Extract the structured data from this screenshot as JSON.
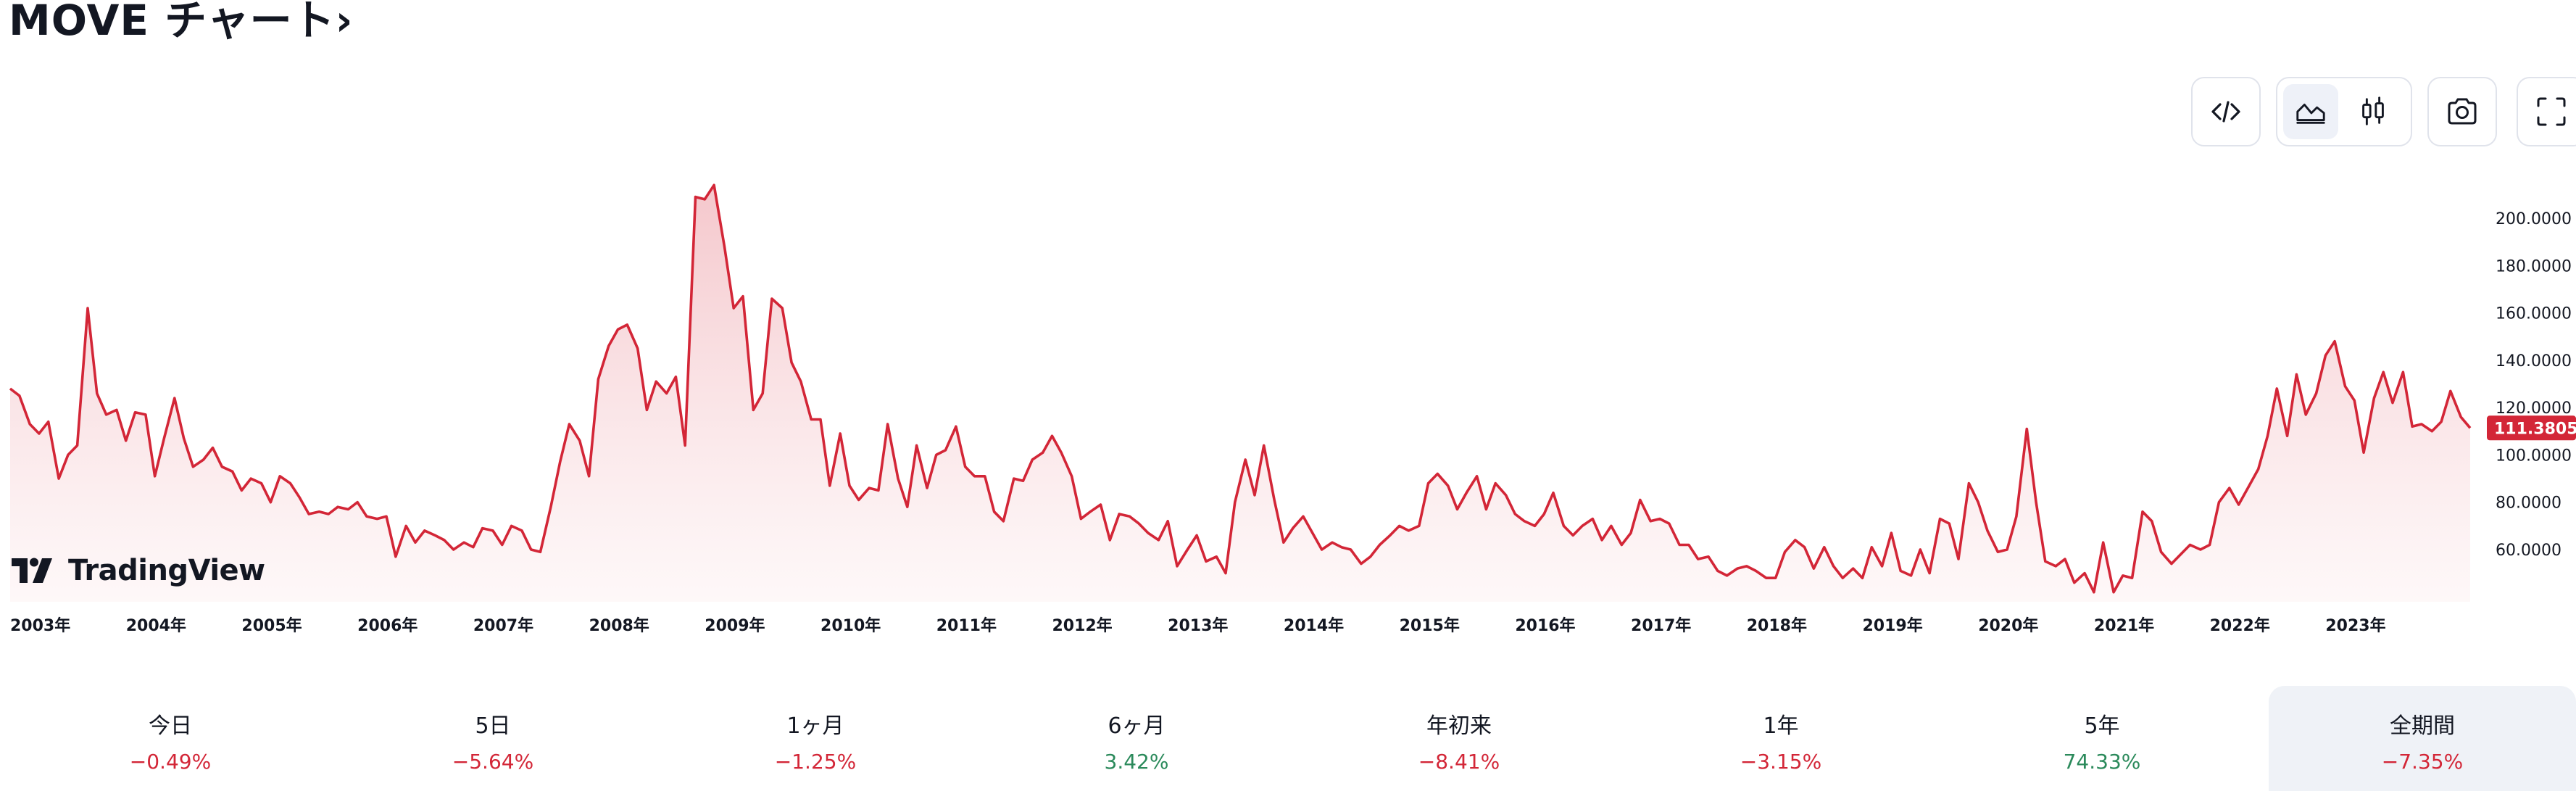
{
  "header": {
    "title": "MOVE チャート›"
  },
  "toolbar": {
    "buttons": [
      {
        "name": "embed-code",
        "icon": "code-icon"
      },
      {
        "name": "line-chart",
        "icon": "area-chart-icon",
        "active": true
      },
      {
        "name": "candles",
        "icon": "candlestick-icon"
      },
      {
        "name": "snapshot",
        "icon": "camera-icon"
      },
      {
        "name": "fullscreen",
        "icon": "fullscreen-icon"
      }
    ]
  },
  "watermark": {
    "text": "TradingView"
  },
  "colors": {
    "line": "#d32637",
    "fill_top": "#f4c4c9",
    "fill_bottom": "#fdf3f4",
    "negative": "#d32637",
    "positive": "#2b8a5b"
  },
  "chart_data": {
    "type": "area",
    "title": "MOVE",
    "xlabel": "",
    "ylabel": "",
    "x_start_year": 2003,
    "x_tick_labels": [
      "2003年",
      "2004年",
      "2005年",
      "2006年",
      "2007年",
      "2008年",
      "2009年",
      "2010年",
      "2011年",
      "2012年",
      "2013年",
      "2014年",
      "2015年",
      "2016年",
      "2017年",
      "2018年",
      "2019年",
      "2020年",
      "2021年",
      "2022年",
      "2023年"
    ],
    "y_tick_labels": [
      "60.0000",
      "80.0000",
      "100.0000",
      "120.0000",
      "140.0000",
      "160.0000",
      "180.0000",
      "200.0000"
    ],
    "y_ticks": [
      60,
      80,
      100,
      120,
      140,
      160,
      180,
      200
    ],
    "ylim": [
      35,
      216
    ],
    "last_value": 111.3805,
    "last_value_label": "111.3805",
    "grid": false,
    "series": [
      {
        "values": [
          [
            2003.0,
            128
          ],
          [
            2003.08,
            125
          ],
          [
            2003.17,
            113
          ],
          [
            2003.25,
            109
          ],
          [
            2003.33,
            114
          ],
          [
            2003.42,
            90
          ],
          [
            2003.5,
            100
          ],
          [
            2003.58,
            104
          ],
          [
            2003.67,
            162
          ],
          [
            2003.75,
            126
          ],
          [
            2003.83,
            117
          ],
          [
            2003.92,
            119
          ],
          [
            2004.0,
            106
          ],
          [
            2004.08,
            118
          ],
          [
            2004.17,
            117
          ],
          [
            2004.25,
            91
          ],
          [
            2004.33,
            107
          ],
          [
            2004.42,
            124
          ],
          [
            2004.5,
            107
          ],
          [
            2004.58,
            95
          ],
          [
            2004.67,
            98
          ],
          [
            2004.75,
            103
          ],
          [
            2004.83,
            95
          ],
          [
            2004.92,
            93
          ],
          [
            2005.0,
            85
          ],
          [
            2005.08,
            90
          ],
          [
            2005.17,
            88
          ],
          [
            2005.25,
            80
          ],
          [
            2005.33,
            91
          ],
          [
            2005.42,
            88
          ],
          [
            2005.5,
            82
          ],
          [
            2005.58,
            75
          ],
          [
            2005.67,
            76
          ],
          [
            2005.75,
            75
          ],
          [
            2005.83,
            78
          ],
          [
            2005.92,
            77
          ],
          [
            2006.0,
            80
          ],
          [
            2006.08,
            74
          ],
          [
            2006.17,
            73
          ],
          [
            2006.25,
            74
          ],
          [
            2006.33,
            57
          ],
          [
            2006.42,
            70
          ],
          [
            2006.5,
            63
          ],
          [
            2006.58,
            68
          ],
          [
            2006.67,
            66
          ],
          [
            2006.75,
            64
          ],
          [
            2006.83,
            60
          ],
          [
            2006.92,
            63
          ],
          [
            2007.0,
            61
          ],
          [
            2007.08,
            69
          ],
          [
            2007.17,
            68
          ],
          [
            2007.25,
            62
          ],
          [
            2007.33,
            70
          ],
          [
            2007.42,
            68
          ],
          [
            2007.5,
            60
          ],
          [
            2007.58,
            59
          ],
          [
            2007.67,
            78
          ],
          [
            2007.75,
            97
          ],
          [
            2007.83,
            113
          ],
          [
            2007.92,
            106
          ],
          [
            2008.0,
            91
          ],
          [
            2008.08,
            132
          ],
          [
            2008.17,
            146
          ],
          [
            2008.25,
            153
          ],
          [
            2008.33,
            155
          ],
          [
            2008.42,
            145
          ],
          [
            2008.5,
            119
          ],
          [
            2008.58,
            131
          ],
          [
            2008.67,
            126
          ],
          [
            2008.75,
            133
          ],
          [
            2008.83,
            104
          ],
          [
            2008.92,
            209
          ],
          [
            2009.0,
            208
          ],
          [
            2009.08,
            214
          ],
          [
            2009.17,
            188
          ],
          [
            2009.25,
            162
          ],
          [
            2009.33,
            167
          ],
          [
            2009.42,
            119
          ],
          [
            2009.5,
            126
          ],
          [
            2009.58,
            166
          ],
          [
            2009.67,
            162
          ],
          [
            2009.75,
            139
          ],
          [
            2009.83,
            131
          ],
          [
            2009.92,
            115
          ],
          [
            2010.0,
            115
          ],
          [
            2010.08,
            87
          ],
          [
            2010.17,
            109
          ],
          [
            2010.25,
            87
          ],
          [
            2010.33,
            81
          ],
          [
            2010.42,
            86
          ],
          [
            2010.5,
            85
          ],
          [
            2010.58,
            113
          ],
          [
            2010.67,
            90
          ],
          [
            2010.75,
            78
          ],
          [
            2010.83,
            104
          ],
          [
            2010.92,
            86
          ],
          [
            2011.0,
            100
          ],
          [
            2011.08,
            102
          ],
          [
            2011.17,
            112
          ],
          [
            2011.25,
            95
          ],
          [
            2011.33,
            91
          ],
          [
            2011.42,
            91
          ],
          [
            2011.5,
            76
          ],
          [
            2011.58,
            72
          ],
          [
            2011.67,
            90
          ],
          [
            2011.75,
            89
          ],
          [
            2011.83,
            98
          ],
          [
            2011.92,
            101
          ],
          [
            2012.0,
            108
          ],
          [
            2012.08,
            101
          ],
          [
            2012.17,
            91
          ],
          [
            2012.25,
            73
          ],
          [
            2012.33,
            76
          ],
          [
            2012.42,
            79
          ],
          [
            2012.5,
            64
          ],
          [
            2012.58,
            75
          ],
          [
            2012.67,
            74
          ],
          [
            2012.75,
            71
          ],
          [
            2012.83,
            67
          ],
          [
            2012.92,
            64
          ],
          [
            2013.0,
            72
          ],
          [
            2013.08,
            53
          ],
          [
            2013.17,
            60
          ],
          [
            2013.25,
            66
          ],
          [
            2013.33,
            55
          ],
          [
            2013.42,
            57
          ],
          [
            2013.5,
            50
          ],
          [
            2013.58,
            80
          ],
          [
            2013.67,
            98
          ],
          [
            2013.75,
            83
          ],
          [
            2013.83,
            104
          ],
          [
            2013.92,
            81
          ],
          [
            2014.0,
            63
          ],
          [
            2014.08,
            69
          ],
          [
            2014.17,
            74
          ],
          [
            2014.25,
            67
          ],
          [
            2014.33,
            60
          ],
          [
            2014.42,
            63
          ],
          [
            2014.5,
            61
          ],
          [
            2014.58,
            60
          ],
          [
            2014.67,
            54
          ],
          [
            2014.75,
            57
          ],
          [
            2014.83,
            62
          ],
          [
            2014.92,
            66
          ],
          [
            2015.0,
            70
          ],
          [
            2015.08,
            68
          ],
          [
            2015.17,
            70
          ],
          [
            2015.25,
            88
          ],
          [
            2015.33,
            92
          ],
          [
            2015.42,
            87
          ],
          [
            2015.5,
            77
          ],
          [
            2015.58,
            84
          ],
          [
            2015.67,
            91
          ],
          [
            2015.75,
            77
          ],
          [
            2015.83,
            88
          ],
          [
            2015.92,
            83
          ],
          [
            2016.0,
            75
          ],
          [
            2016.08,
            72
          ],
          [
            2016.17,
            70
          ],
          [
            2016.25,
            75
          ],
          [
            2016.33,
            84
          ],
          [
            2016.42,
            70
          ],
          [
            2016.5,
            66
          ],
          [
            2016.58,
            70
          ],
          [
            2016.67,
            73
          ],
          [
            2016.75,
            64
          ],
          [
            2016.83,
            70
          ],
          [
            2016.92,
            62
          ],
          [
            2017.0,
            67
          ],
          [
            2017.08,
            81
          ],
          [
            2017.17,
            72
          ],
          [
            2017.25,
            73
          ],
          [
            2017.33,
            71
          ],
          [
            2017.42,
            62
          ],
          [
            2017.5,
            62
          ],
          [
            2017.58,
            56
          ],
          [
            2017.67,
            57
          ],
          [
            2017.75,
            51
          ],
          [
            2017.83,
            49
          ],
          [
            2017.92,
            52
          ],
          [
            2018.0,
            53
          ],
          [
            2018.08,
            51
          ],
          [
            2018.17,
            48
          ],
          [
            2018.25,
            48
          ],
          [
            2018.33,
            59
          ],
          [
            2018.42,
            64
          ],
          [
            2018.5,
            61
          ],
          [
            2018.58,
            52
          ],
          [
            2018.67,
            61
          ],
          [
            2018.75,
            53
          ],
          [
            2018.83,
            48
          ],
          [
            2018.92,
            52
          ],
          [
            2019.0,
            48
          ],
          [
            2019.08,
            61
          ],
          [
            2019.17,
            53
          ],
          [
            2019.25,
            67
          ],
          [
            2019.33,
            51
          ],
          [
            2019.42,
            49
          ],
          [
            2019.5,
            60
          ],
          [
            2019.58,
            50
          ],
          [
            2019.67,
            73
          ],
          [
            2019.75,
            71
          ],
          [
            2019.83,
            56
          ],
          [
            2019.92,
            88
          ],
          [
            2020.0,
            80
          ],
          [
            2020.08,
            68
          ],
          [
            2020.17,
            59
          ],
          [
            2020.25,
            60
          ],
          [
            2020.33,
            74
          ],
          [
            2020.42,
            111
          ],
          [
            2020.5,
            80
          ],
          [
            2020.58,
            55
          ],
          [
            2020.67,
            53
          ],
          [
            2020.75,
            56
          ],
          [
            2020.83,
            46
          ],
          [
            2020.92,
            50
          ],
          [
            2021.0,
            42
          ],
          [
            2021.08,
            63
          ],
          [
            2021.17,
            42
          ],
          [
            2021.25,
            49
          ],
          [
            2021.33,
            48
          ],
          [
            2021.42,
            76
          ],
          [
            2021.5,
            72
          ],
          [
            2021.58,
            59
          ],
          [
            2021.67,
            54
          ],
          [
            2021.75,
            58
          ],
          [
            2021.83,
            62
          ],
          [
            2021.92,
            60
          ],
          [
            2022.0,
            62
          ],
          [
            2022.08,
            80
          ],
          [
            2022.17,
            86
          ],
          [
            2022.25,
            79
          ],
          [
            2022.33,
            86
          ],
          [
            2022.42,
            94
          ],
          [
            2022.5,
            108
          ],
          [
            2022.58,
            128
          ],
          [
            2022.67,
            108
          ],
          [
            2022.75,
            134
          ],
          [
            2022.83,
            117
          ],
          [
            2022.92,
            126
          ],
          [
            2023.0,
            142
          ],
          [
            2023.08,
            148
          ],
          [
            2023.17,
            129
          ],
          [
            2023.25,
            123
          ],
          [
            2023.33,
            101
          ],
          [
            2023.42,
            124
          ],
          [
            2023.5,
            135
          ],
          [
            2023.58,
            122
          ],
          [
            2023.67,
            135
          ],
          [
            2023.75,
            112
          ],
          [
            2023.83,
            113
          ],
          [
            2023.92,
            110
          ],
          [
            2024.0,
            114
          ],
          [
            2024.08,
            127
          ],
          [
            2024.17,
            116
          ],
          [
            2024.25,
            111.3805
          ]
        ]
      }
    ]
  },
  "periods": [
    {
      "label": "今日",
      "value": "−0.49%",
      "sign": "neg"
    },
    {
      "label": "5日",
      "value": "−5.64%",
      "sign": "neg"
    },
    {
      "label": "1ヶ月",
      "value": "−1.25%",
      "sign": "neg"
    },
    {
      "label": "6ヶ月",
      "value": "3.42%",
      "sign": "pos"
    },
    {
      "label": "年初来",
      "value": "−8.41%",
      "sign": "neg"
    },
    {
      "label": "1年",
      "value": "−3.15%",
      "sign": "neg"
    },
    {
      "label": "5年",
      "value": "74.33%",
      "sign": "pos"
    },
    {
      "label": "全期間",
      "value": "−7.35%",
      "sign": "neg",
      "active": true
    }
  ]
}
